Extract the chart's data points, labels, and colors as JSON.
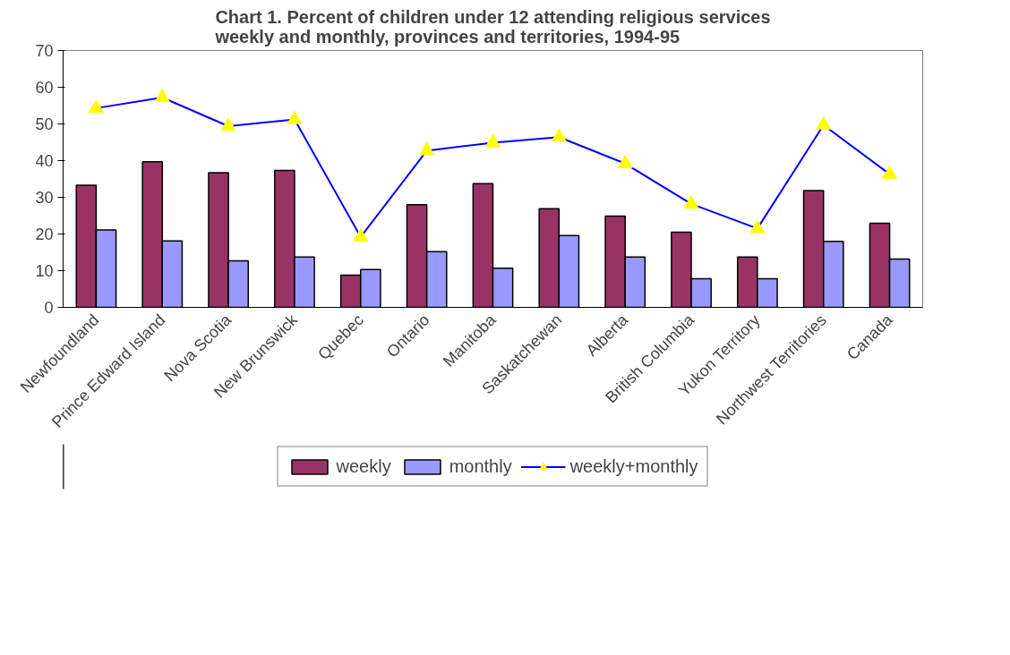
{
  "chart_data": {
    "type": "bar",
    "title": "Chart 1. Percent of children under 12 attending religious services\nweekly and monthly, provinces and territories, 1994-95",
    "categories": [
      "Newfoundland",
      "Prince Edward Island",
      "Nova Scotia",
      "New Brunswick",
      "Quebec",
      "Ontario",
      "Manitoba",
      "Saskatchewan",
      "Alberta",
      "British Columbia",
      "Yukon Territory",
      "Northwest Territories",
      "Canada"
    ],
    "series": [
      {
        "name": "weekly",
        "color": "#993366",
        "values": [
          33.3,
          39.7,
          36.7,
          37.3,
          8.8,
          28.0,
          33.7,
          26.9,
          24.9,
          20.5,
          13.7,
          31.8,
          22.9
        ]
      },
      {
        "name": "monthly",
        "color": "#9999ff",
        "values": [
          21.1,
          18.1,
          12.7,
          13.7,
          10.3,
          15.2,
          10.7,
          19.6,
          13.7,
          7.8,
          7.8,
          18.0,
          13.2
        ]
      },
      {
        "name": "weekly+monthly",
        "type": "line",
        "color": "#0000ff",
        "marker": "triangle",
        "values": [
          54.3,
          57.2,
          49.4,
          51.2,
          19.2,
          42.7,
          44.9,
          46.4,
          39.2,
          28.2,
          21.5,
          49.7,
          36.3
        ]
      }
    ],
    "ylim": [
      0,
      70
    ],
    "yticks": [
      0,
      10,
      20,
      30,
      40,
      50,
      60,
      70
    ],
    "grid": false,
    "legend": "bottom"
  }
}
